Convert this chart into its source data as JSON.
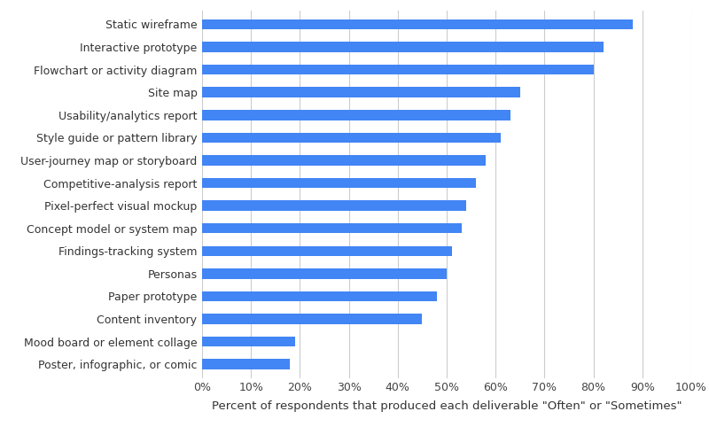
{
  "categories": [
    "Poster, infographic, or comic",
    "Mood board or element collage",
    "Content inventory",
    "Paper prototype",
    "Personas",
    "Findings-tracking system",
    "Concept model or system map",
    "Pixel-perfect visual mockup",
    "Competitive-analysis report",
    "User-journey map or storyboard",
    "Style guide or pattern library",
    "Usability/analytics report",
    "Site map",
    "Flowchart or activity diagram",
    "Interactive prototype",
    "Static wireframe"
  ],
  "values": [
    18,
    19,
    45,
    48,
    50,
    51,
    53,
    54,
    56,
    58,
    61,
    63,
    65,
    80,
    82,
    88
  ],
  "bar_color": "#4285F4",
  "background_color": "#ffffff",
  "xlabel": "Percent of respondents that produced each deliverable \"Often\" or \"Sometimes\"",
  "xlim": [
    0,
    100
  ],
  "xtick_values": [
    0,
    10,
    20,
    30,
    40,
    50,
    60,
    70,
    80,
    90,
    100
  ],
  "grid_color": "#cccccc",
  "bar_height": 0.45,
  "label_fontsize": 9.5,
  "tick_fontsize": 9.0,
  "xlabel_fontsize": 9.5
}
